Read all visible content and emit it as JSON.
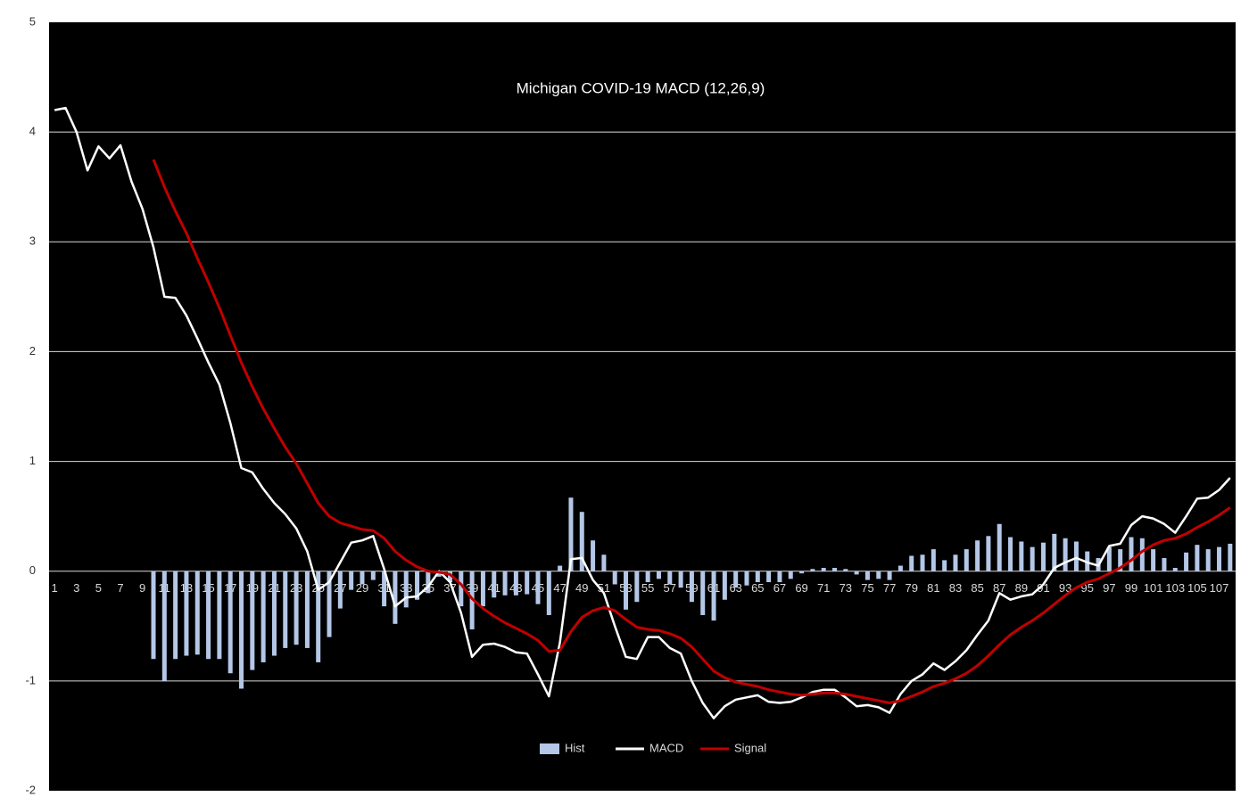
{
  "chart_data": {
    "type": "line",
    "title": "Michigan COVID-19 MACD (12,26,9)",
    "categories": [
      1,
      null,
      3,
      null,
      5,
      null,
      7,
      null,
      9,
      null,
      11,
      null,
      13,
      null,
      15,
      null,
      17,
      null,
      19,
      null,
      21,
      null,
      23,
      null,
      25,
      null,
      27,
      null,
      29,
      null,
      31,
      null,
      33,
      null,
      35,
      null,
      37,
      null,
      39,
      null,
      41,
      null,
      43,
      null,
      45,
      null,
      47,
      null,
      49,
      null,
      51,
      null,
      53,
      null,
      55,
      null,
      57,
      null,
      59,
      null,
      61,
      null,
      63,
      null,
      65,
      null,
      67,
      null,
      69,
      null,
      71,
      null,
      73,
      null,
      75,
      null,
      77,
      null,
      79,
      null,
      81,
      null,
      83,
      null,
      85,
      null,
      87,
      null,
      89,
      null,
      91,
      null,
      93,
      null,
      95,
      null,
      97,
      null,
      99,
      null,
      101,
      null,
      103,
      null,
      105,
      null,
      107,
      null
    ],
    "series": [
      {
        "name": "Hist",
        "kind": "bar",
        "color": "#b4c7e7",
        "values": [
          null,
          null,
          null,
          null,
          null,
          null,
          null,
          null,
          null,
          -0.8,
          -1.0,
          -0.8,
          -0.77,
          -0.76,
          -0.8,
          -0.8,
          -0.93,
          -1.07,
          -0.9,
          -0.83,
          -0.77,
          -0.7,
          -0.67,
          -0.7,
          -0.83,
          -0.6,
          -0.34,
          -0.17,
          -0.12,
          -0.08,
          -0.32,
          -0.48,
          -0.33,
          -0.26,
          -0.2,
          -0.05,
          -0.1,
          -0.32,
          -0.53,
          -0.32,
          -0.24,
          -0.22,
          -0.22,
          -0.21,
          -0.3,
          -0.4,
          0.05,
          0.67,
          0.54,
          0.28,
          0.15,
          -0.12,
          -0.35,
          -0.28,
          -0.1,
          -0.07,
          -0.12,
          -0.15,
          -0.28,
          -0.4,
          -0.45,
          -0.26,
          -0.15,
          -0.13,
          -0.1,
          -0.1,
          -0.1,
          -0.07,
          -0.02,
          0.02,
          0.03,
          0.03,
          0.02,
          -0.03,
          -0.08,
          -0.07,
          -0.08,
          0.05,
          0.14,
          0.15,
          0.2,
          0.1,
          0.15,
          0.2,
          0.28,
          0.32,
          0.43,
          0.31,
          0.27,
          0.22,
          0.26,
          0.34,
          0.3,
          0.27,
          0.18,
          0.12,
          0.22,
          0.2,
          0.31,
          0.3,
          0.2,
          0.12,
          0.03,
          0.17,
          0.24,
          0.2,
          0.22,
          0.25
        ]
      },
      {
        "name": "MACD",
        "kind": "line",
        "color": "#ffffff",
        "values": [
          4.2,
          4.22,
          4.0,
          3.65,
          3.87,
          3.76,
          3.88,
          3.55,
          3.3,
          2.95,
          2.5,
          2.49,
          2.33,
          2.12,
          1.9,
          1.7,
          1.35,
          0.94,
          0.9,
          0.75,
          0.62,
          0.52,
          0.39,
          0.18,
          -0.17,
          -0.1,
          0.08,
          0.26,
          0.28,
          0.32,
          0.02,
          -0.32,
          -0.24,
          -0.23,
          -0.14,
          0.0,
          -0.1,
          -0.38,
          -0.78,
          -0.67,
          -0.66,
          -0.69,
          -0.74,
          -0.75,
          -0.94,
          -1.14,
          -0.65,
          0.11,
          0.12,
          -0.08,
          -0.2,
          -0.5,
          -0.78,
          -0.8,
          -0.6,
          -0.6,
          -0.7,
          -0.75,
          -1.0,
          -1.2,
          -1.34,
          -1.23,
          -1.17,
          -1.15,
          -1.13,
          -1.19,
          -1.2,
          -1.19,
          -1.15,
          -1.1,
          -1.08,
          -1.08,
          -1.15,
          -1.23,
          -1.22,
          -1.24,
          -1.29,
          -1.12,
          -1.0,
          -0.94,
          -0.84,
          -0.9,
          -0.82,
          -0.72,
          -0.58,
          -0.45,
          -0.2,
          -0.26,
          -0.23,
          -0.21,
          -0.12,
          0.03,
          0.08,
          0.12,
          0.08,
          0.05,
          0.23,
          0.25,
          0.42,
          0.5,
          0.48,
          0.43,
          0.35,
          0.5,
          0.66,
          0.67,
          0.74,
          0.85
        ]
      },
      {
        "name": "Signal",
        "kind": "line",
        "color": "#c00000",
        "values": [
          null,
          null,
          null,
          null,
          null,
          null,
          null,
          null,
          null,
          3.75,
          3.5,
          3.28,
          3.08,
          2.85,
          2.63,
          2.4,
          2.15,
          1.9,
          1.68,
          1.48,
          1.3,
          1.13,
          0.98,
          0.8,
          0.62,
          0.5,
          0.44,
          0.41,
          0.38,
          0.37,
          0.3,
          0.18,
          0.1,
          0.04,
          0.0,
          -0.01,
          -0.03,
          -0.12,
          -0.25,
          -0.34,
          -0.41,
          -0.47,
          -0.52,
          -0.57,
          -0.63,
          -0.73,
          -0.72,
          -0.55,
          -0.42,
          -0.36,
          -0.33,
          -0.36,
          -0.44,
          -0.51,
          -0.53,
          -0.54,
          -0.57,
          -0.61,
          -0.69,
          -0.8,
          -0.91,
          -0.97,
          -1.01,
          -1.03,
          -1.05,
          -1.08,
          -1.1,
          -1.12,
          -1.13,
          -1.12,
          -1.11,
          -1.11,
          -1.12,
          -1.14,
          -1.16,
          -1.18,
          -1.2,
          -1.18,
          -1.14,
          -1.1,
          -1.05,
          -1.02,
          -0.98,
          -0.93,
          -0.86,
          -0.77,
          -0.67,
          -0.58,
          -0.51,
          -0.45,
          -0.38,
          -0.3,
          -0.22,
          -0.15,
          -0.1,
          -0.07,
          -0.02,
          0.03,
          0.1,
          0.18,
          0.24,
          0.28,
          0.3,
          0.34,
          0.4,
          0.45,
          0.51,
          0.58
        ]
      }
    ],
    "ylim": [
      -2,
      5
    ],
    "yticks": [
      -2,
      -1,
      0,
      1,
      2,
      3,
      4,
      5
    ],
    "grid": true,
    "legend": "bottom"
  }
}
